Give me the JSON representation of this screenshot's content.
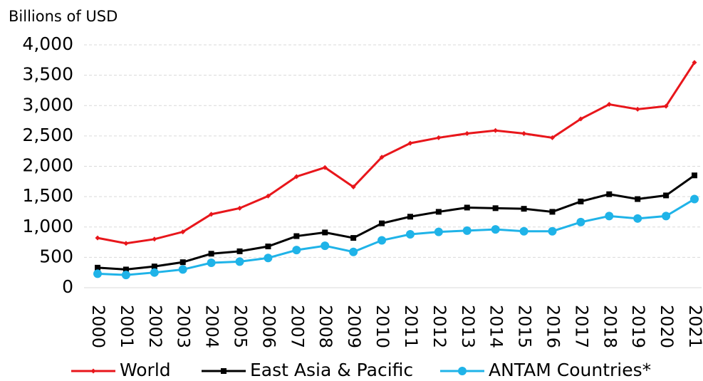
{
  "chart_data": {
    "type": "line",
    "y_axis_label": "Billions of USD",
    "categories": [
      "2000",
      "2001",
      "2002",
      "2003",
      "2004",
      "2005",
      "2006",
      "2007",
      "2008",
      "2009",
      "2010",
      "2011",
      "2012",
      "2013",
      "2014",
      "2015",
      "2016",
      "2017",
      "2018",
      "2019",
      "2020",
      "2021"
    ],
    "series": [
      {
        "name": "World",
        "color": "#e8161b",
        "marker": "diamond",
        "values": [
          820,
          730,
          800,
          920,
          1210,
          1310,
          1510,
          1830,
          1980,
          1660,
          2150,
          2380,
          2470,
          2540,
          2590,
          2540,
          2470,
          2780,
          3020,
          2940,
          2990,
          3710
        ]
      },
      {
        "name": "East Asia & Pacific",
        "color": "#000000",
        "marker": "square",
        "values": [
          330,
          300,
          350,
          420,
          560,
          600,
          680,
          850,
          910,
          820,
          1060,
          1170,
          1250,
          1320,
          1310,
          1300,
          1250,
          1420,
          1540,
          1460,
          1520,
          1850
        ]
      },
      {
        "name": "ANTAM Countries*",
        "color": "#1fb3e8",
        "marker": "circle",
        "values": [
          230,
          210,
          250,
          300,
          410,
          430,
          490,
          620,
          690,
          590,
          780,
          880,
          920,
          940,
          960,
          930,
          930,
          1080,
          1180,
          1140,
          1180,
          1460
        ]
      }
    ],
    "ylim": [
      0,
      4000
    ],
    "yticks": [
      0,
      500,
      {
        "value": 1000,
        "label": "1,000"
      },
      {
        "value": 1500,
        "label": "1,500"
      },
      {
        "value": 2000,
        "label": "2,000"
      },
      {
        "value": 2500,
        "label": "2,500"
      },
      {
        "value": 3000,
        "label": "3,000"
      },
      {
        "value": 3500,
        "label": "3,500"
      },
      {
        "value": 4000,
        "label": "4,000"
      }
    ],
    "grid": true,
    "legend": "bottom"
  }
}
